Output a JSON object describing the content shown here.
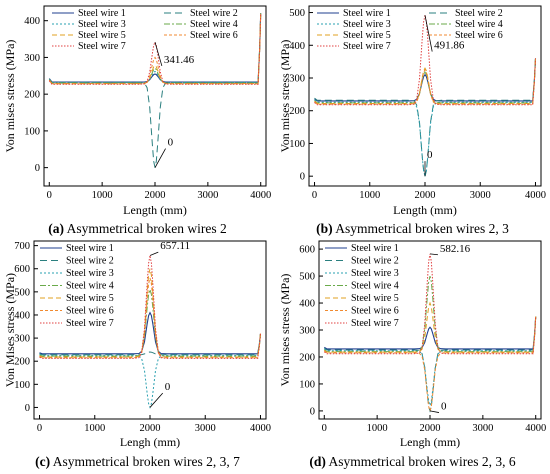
{
  "line_colors": [
    "#1f3f8f",
    "#2a7f7f",
    "#2aa0b0",
    "#6aaa4a",
    "#e0a020",
    "#f08a30",
    "#e04040"
  ],
  "chart_data": [
    {
      "type": "line",
      "panel_label": "(a)",
      "caption": "Asymmetrical broken wires 2",
      "xlabel": "Length (mm)",
      "ylabel": "Von mises stress (MPa)",
      "xlim": [
        -100,
        4100
      ],
      "ylim": [
        -50,
        440
      ],
      "xticks": [
        0,
        1000,
        2000,
        3000,
        4000
      ],
      "yticks": [
        0,
        100,
        200,
        300,
        400
      ],
      "legend_position": "top",
      "legend_columns": 2,
      "series": [
        {
          "name": "Steel wire 1",
          "base": 233,
          "peak": 255,
          "end": 420
        },
        {
          "name": "Steel wire 2",
          "base": 232,
          "peak": 0,
          "end": 420
        },
        {
          "name": "Steel wire 3",
          "base": 231,
          "peak": 262,
          "end": 420
        },
        {
          "name": "Steel wire 4",
          "base": 230,
          "peak": 270,
          "end": 420
        },
        {
          "name": "Steel wire 5",
          "base": 229,
          "peak": 278,
          "end": 420
        },
        {
          "name": "Steel wire 6",
          "base": 228,
          "peak": 300,
          "end": 420
        },
        {
          "name": "Steel wire 7",
          "base": 227,
          "peak": 341.46,
          "end": 420
        }
      ],
      "annotations": [
        {
          "text": "341.46",
          "x": 2000,
          "y": 341.46,
          "tx": 2130,
          "ty": 285
        },
        {
          "text": "0",
          "x": 2000,
          "y": 0,
          "tx": 2200,
          "ty": 60
        }
      ]
    },
    {
      "type": "line",
      "panel_label": "(b)",
      "caption": "Asymmetrical broken wires 2, 3",
      "xlabel": "Length (mm)",
      "ylabel": "Von mises stress (MPa)",
      "xlim": [
        -100,
        4100
      ],
      "ylim": [
        -30,
        520
      ],
      "xticks": [
        0,
        1000,
        2000,
        3000,
        4000
      ],
      "yticks": [
        0,
        100,
        200,
        300,
        400,
        500
      ],
      "legend_position": "top",
      "legend_columns": 2,
      "series": [
        {
          "name": "Steel wire 1",
          "base": 230,
          "peak": 310,
          "end": 360
        },
        {
          "name": "Steel wire 2",
          "base": 232,
          "peak": 0,
          "end": 360
        },
        {
          "name": "Steel wire 3",
          "base": 226,
          "peak": 0,
          "end": 360
        },
        {
          "name": "Steel wire 4",
          "base": 224,
          "peak": 318,
          "end": 360
        },
        {
          "name": "Steel wire 5",
          "base": 222,
          "peak": 330,
          "end": 360
        },
        {
          "name": "Steel wire 6",
          "base": 220,
          "peak": 325,
          "end": 360
        },
        {
          "name": "Steel wire 7",
          "base": 218,
          "peak": 491.86,
          "end": 360
        }
      ],
      "annotations": [
        {
          "text": "491.86",
          "x": 2000,
          "y": 491.86,
          "tx": 2130,
          "ty": 390
        },
        {
          "text": "0",
          "x": 2000,
          "y": 0,
          "tx": 2000,
          "ty": 55
        }
      ]
    },
    {
      "type": "line",
      "panel_label": "(c)",
      "caption": "Asymmetrical broken wires 2, 3, 7",
      "xlabel": "Lengh (mm)",
      "ylabel": "Von Mises stress (MPa)",
      "xlim": [
        -100,
        4100
      ],
      "ylim": [
        -50,
        720
      ],
      "xticks": [
        0,
        1000,
        2000,
        3000,
        4000
      ],
      "yticks": [
        0,
        100,
        200,
        300,
        400,
        500,
        600,
        700
      ],
      "legend_position": "top-left",
      "legend_columns": 1,
      "series": [
        {
          "name": "Steel wire 1",
          "base": 232,
          "peak": 410,
          "end": 320
        },
        {
          "name": "Steel wire 2",
          "base": 228,
          "peak": 240,
          "end": 320
        },
        {
          "name": "Steel wire 3",
          "base": 225,
          "peak": 0,
          "end": 320
        },
        {
          "name": "Steel wire 4",
          "base": 222,
          "peak": 510,
          "end": 320
        },
        {
          "name": "Steel wire 5",
          "base": 218,
          "peak": 600,
          "end": 320
        },
        {
          "name": "Steel wire 6",
          "base": 215,
          "peak": 560,
          "end": 320
        },
        {
          "name": "Steel wire 7",
          "base": 212,
          "peak": 657.11,
          "end": 320
        }
      ],
      "annotations": [
        {
          "text": "657.11",
          "x": 2000,
          "y": 657.11,
          "tx": 2150,
          "ty": 685
        },
        {
          "text": "0",
          "x": 2000,
          "y": 0,
          "tx": 2230,
          "ty": 75
        }
      ]
    },
    {
      "type": "line",
      "panel_label": "(d)",
      "caption": "Asymmetrical broken wires 2, 3, 6",
      "xlabel": "Lengh (mm)",
      "ylabel": "Von mises stress (MPa)",
      "xlim": [
        -100,
        4100
      ],
      "ylim": [
        -30,
        630
      ],
      "xticks": [
        0,
        1000,
        2000,
        3000,
        4000
      ],
      "yticks": [
        0,
        100,
        200,
        300,
        400,
        500,
        600
      ],
      "legend_position": "top-left",
      "legend_columns": 1,
      "series": [
        {
          "name": "Steel wire 1",
          "base": 230,
          "peak": 310,
          "end": 350
        },
        {
          "name": "Steel wire 2",
          "base": 226,
          "peak": 0,
          "end": 350
        },
        {
          "name": "Steel wire 3",
          "base": 223,
          "peak": 20,
          "end": 350
        },
        {
          "name": "Steel wire 4",
          "base": 220,
          "peak": 500,
          "end": 350
        },
        {
          "name": "Steel wire 5",
          "base": 218,
          "peak": 400,
          "end": 350
        },
        {
          "name": "Steel wire 6",
          "base": 215,
          "peak": 0,
          "end": 350
        },
        {
          "name": "Steel wire 7",
          "base": 212,
          "peak": 582.16,
          "end": 350
        }
      ],
      "annotations": [
        {
          "text": "582.16",
          "x": 2000,
          "y": 582.16,
          "tx": 2150,
          "ty": 590
        },
        {
          "text": "0",
          "x": 2000,
          "y": 0,
          "tx": 2170,
          "ty": 5
        }
      ]
    }
  ]
}
